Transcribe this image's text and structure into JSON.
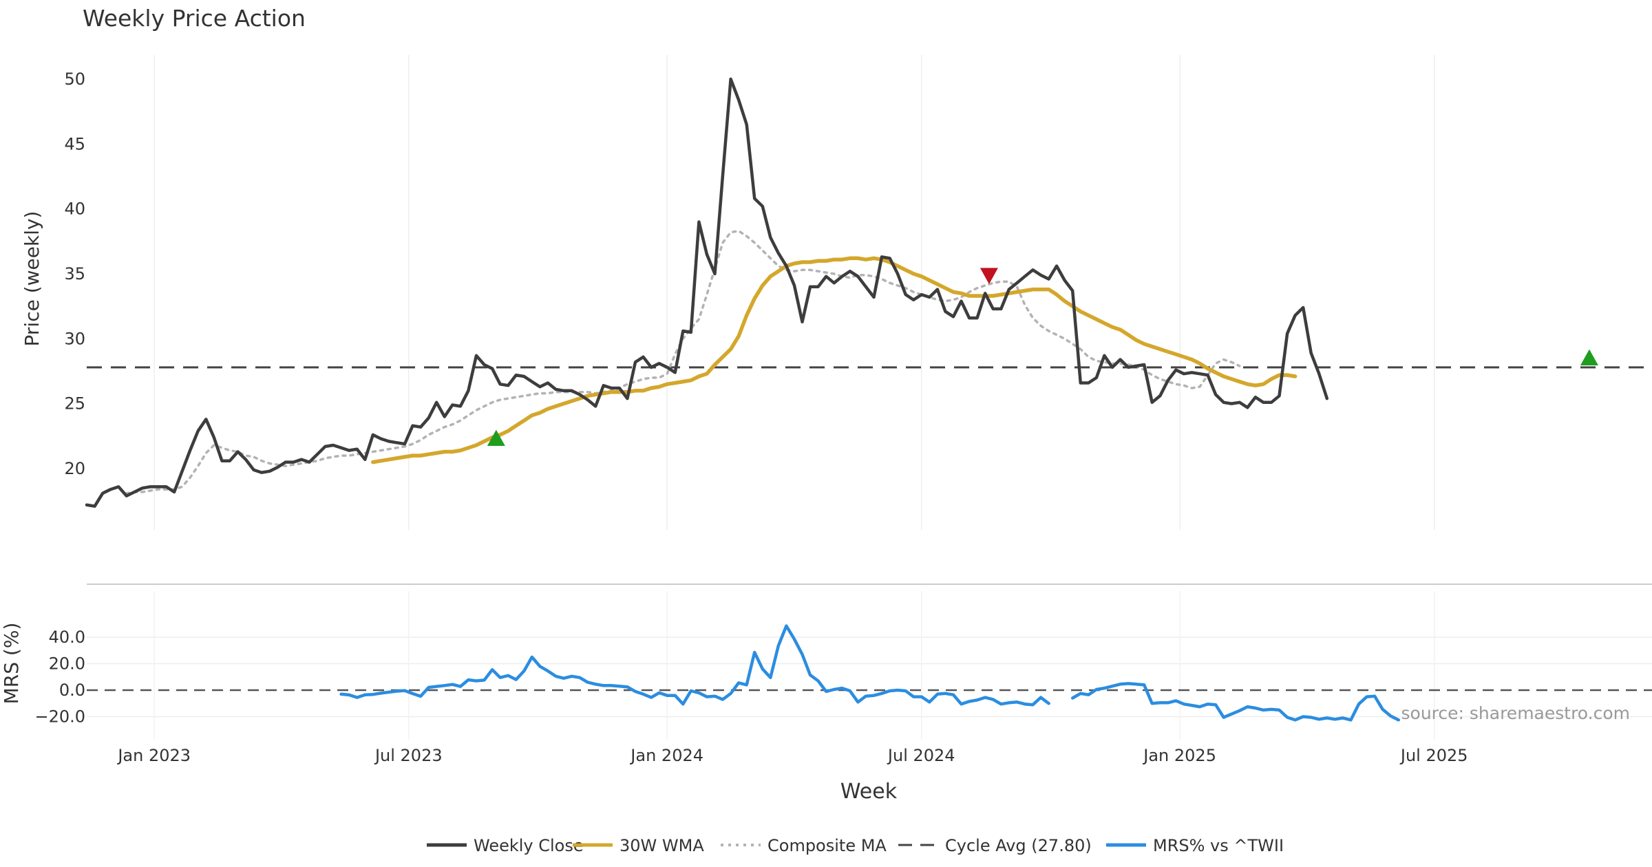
{
  "chart_data": [
    {
      "type": "line",
      "title": "Weekly Price Action",
      "ylabel": "Price (weekly)",
      "xlabel": "Week",
      "ylim": [
        14,
        52
      ],
      "yticks": [
        "20",
        "25",
        "30",
        "35",
        "40",
        "45",
        "50"
      ],
      "xlim": [
        0,
        193
      ],
      "xticks": [
        {
          "x": 8.5,
          "label": "Jan 2023"
        },
        {
          "x": 40.5,
          "label": "Jul 2023"
        },
        {
          "x": 73,
          "label": "Jan 2024"
        },
        {
          "x": 105,
          "label": "Jul 2024"
        },
        {
          "x": 137.5,
          "label": "Jan 2025"
        },
        {
          "x": 169.5,
          "label": "Jul 2025"
        }
      ],
      "grid": true,
      "series": [
        {
          "name": "Weekly Close",
          "color": "#3d3d3d",
          "x_start": 0,
          "values": [
            17.2,
            17.1,
            18.1,
            18.4,
            18.6,
            17.9,
            18.2,
            18.5,
            18.6,
            18.6,
            18.6,
            18.2,
            19.8,
            21.4,
            22.9,
            23.8,
            22.4,
            20.6,
            20.6,
            21.3,
            20.7,
            19.9,
            19.7,
            19.8,
            20.1,
            20.5,
            20.5,
            20.7,
            20.5,
            21.1,
            21.7,
            21.8,
            21.6,
            21.4,
            21.5,
            20.7,
            22.6,
            22.3,
            22.1,
            22.0,
            21.9,
            23.3,
            23.2,
            23.9,
            25.1,
            24.0,
            24.9,
            24.8,
            26.0,
            28.7,
            28.0,
            27.7,
            26.5,
            26.4,
            27.2,
            27.1,
            26.7,
            26.3,
            26.6,
            26.1,
            26.0,
            26.0,
            25.7,
            25.3,
            24.8,
            26.4,
            26.2,
            26.2,
            25.4,
            28.2,
            28.6,
            27.8,
            28.1,
            27.8,
            27.4,
            30.6,
            30.5,
            39.0,
            36.5,
            35.0,
            42.6,
            50.0,
            48.4,
            46.5,
            40.8,
            40.2,
            37.8,
            36.6,
            35.6,
            34.1,
            31.3,
            34.0,
            34.0,
            34.8,
            34.3,
            34.8,
            35.2,
            34.8,
            34.0,
            33.2,
            36.3,
            36.2,
            35.0,
            33.4,
            33.0,
            33.4,
            33.2,
            33.8,
            32.1,
            31.7,
            32.9,
            31.6,
            31.6,
            33.5,
            32.3,
            32.3,
            33.8,
            34.3,
            34.8,
            35.3,
            34.9,
            34.6,
            35.6,
            34.5,
            33.7,
            26.6,
            26.6,
            27.0,
            28.7,
            27.8,
            28.4,
            27.8,
            27.9,
            28.0,
            25.1,
            25.6,
            26.8,
            27.6,
            27.3,
            27.4,
            27.3,
            27.2,
            25.7,
            25.1,
            25.0,
            25.1,
            24.7,
            25.5,
            25.1,
            25.1,
            25.6,
            30.4,
            31.8,
            32.4,
            28.9,
            27.3,
            25.4
          ]
        },
        {
          "name": "30W WMA",
          "color": "#d4a72c",
          "x_start": 36,
          "values": [
            20.5,
            20.6,
            20.7,
            20.8,
            20.9,
            21.0,
            21.0,
            21.1,
            21.2,
            21.3,
            21.3,
            21.4,
            21.6,
            21.8,
            22.1,
            22.4,
            22.6,
            22.9,
            23.3,
            23.7,
            24.1,
            24.3,
            24.6,
            24.8,
            25.0,
            25.2,
            25.4,
            25.6,
            25.7,
            25.8,
            25.9,
            25.9,
            25.9,
            26.0,
            26.0,
            26.2,
            26.3,
            26.5,
            26.6,
            26.7,
            26.8,
            27.1,
            27.3,
            28.0,
            28.6,
            29.2,
            30.2,
            31.8,
            33.1,
            34.1,
            34.8,
            35.2,
            35.6,
            35.8,
            35.9,
            35.9,
            36.0,
            36.0,
            36.1,
            36.1,
            36.2,
            36.2,
            36.1,
            36.2,
            36.1,
            35.9,
            35.6,
            35.3,
            35.0,
            34.8,
            34.5,
            34.2,
            33.9,
            33.6,
            33.5,
            33.3,
            33.3,
            33.3,
            33.3,
            33.4,
            33.5,
            33.6,
            33.7,
            33.8,
            33.8,
            33.8,
            33.4,
            32.9,
            32.5,
            32.1,
            31.8,
            31.5,
            31.2,
            30.9,
            30.7,
            30.3,
            29.9,
            29.6,
            29.4,
            29.2,
            29.0,
            28.8,
            28.6,
            28.4,
            28.1,
            27.7,
            27.4,
            27.1,
            26.9,
            26.7,
            26.5,
            26.4,
            26.5,
            26.9,
            27.2,
            27.2,
            27.1
          ]
        },
        {
          "name": "Composite MA",
          "color": "#b3b3b3",
          "x_start": 5,
          "values": [
            18.1,
            18.2,
            18.2,
            18.3,
            18.4,
            18.4,
            18.4,
            18.6,
            19.3,
            20.2,
            21.2,
            21.8,
            21.6,
            21.4,
            21.3,
            21.0,
            20.9,
            20.6,
            20.4,
            20.3,
            20.2,
            20.3,
            20.4,
            20.5,
            20.6,
            20.8,
            20.9,
            21.0,
            21.0,
            21.1,
            21.2,
            21.3,
            21.4,
            21.5,
            21.6,
            21.7,
            21.9,
            22.2,
            22.6,
            22.9,
            23.2,
            23.4,
            23.7,
            24.1,
            24.5,
            24.8,
            25.1,
            25.3,
            25.4,
            25.5,
            25.6,
            25.7,
            25.8,
            25.8,
            25.9,
            25.9,
            25.9,
            25.9,
            25.9,
            25.8,
            25.9,
            26.0,
            26.2,
            26.5,
            26.7,
            26.9,
            27.0,
            27.0,
            27.3,
            28.8,
            30.0,
            30.8,
            31.5,
            33.4,
            35.4,
            37.4,
            38.2,
            38.3,
            37.9,
            37.4,
            36.8,
            36.2,
            35.6,
            35.3,
            35.2,
            35.3,
            35.3,
            35.2,
            35.1,
            35.0,
            34.8,
            34.7,
            34.9,
            34.9,
            34.8,
            34.6,
            34.3,
            34.1,
            33.9,
            33.6,
            33.4,
            33.2,
            33.0,
            32.9,
            33.0,
            33.2,
            33.6,
            33.9,
            34.1,
            34.3,
            34.4,
            34.4,
            34.0,
            32.6,
            31.6,
            31.0,
            30.6,
            30.3,
            30.0,
            29.6,
            29.2,
            28.6,
            28.3,
            28.2,
            28.1,
            28.1,
            28.0,
            27.9,
            27.6,
            27.2,
            26.9,
            26.7,
            26.5,
            26.4,
            26.2,
            26.3,
            27.2,
            28.1,
            28.4,
            28.2,
            27.9
          ]
        },
        {
          "name": "Cycle Avg (27.80)",
          "color": "#444444",
          "constant": 27.8
        }
      ],
      "markers": [
        {
          "type": "buy",
          "x": 51.5,
          "y": 22.3,
          "color": "#1f9d1f"
        },
        {
          "type": "sell",
          "x": 113.5,
          "y": 34.9,
          "color": "#c1121f"
        },
        {
          "type": "buy",
          "x": 189,
          "y": 28.5,
          "color": "#1f9d1f"
        }
      ]
    },
    {
      "type": "line",
      "ylabel": "MRS (%)",
      "ylim": [
        -26,
        52
      ],
      "yticks": [
        "40.0",
        "20.0",
        "0.0",
        "−20.0"
      ],
      "zero_line": true,
      "series": [
        {
          "name": "MRS% vs ^TWII",
          "color": "#2b8de0",
          "x_start": 32,
          "values": [
            -3,
            -3.6,
            -5.5,
            -3.5,
            -3.2,
            -2.3,
            -1.5,
            -0.8,
            -0.3,
            -2.6,
            -4.6,
            2.1,
            2.8,
            3.5,
            4.3,
            2.8,
            7.8,
            7.0,
            7.6,
            15.5,
            9.5,
            11,
            8.0,
            14.5,
            25,
            18,
            14.5,
            10.5,
            9,
            10.5,
            9.5,
            6,
            4.5,
            3.5,
            3.5,
            3,
            2.5,
            -1,
            -3,
            -5.5,
            -2,
            -4,
            -4,
            -10.5,
            -0.5,
            -2,
            -5,
            -4.5,
            -7,
            -2.5,
            5.5,
            4,
            28.5,
            16,
            9.5,
            33.5,
            48.5,
            38.5,
            27,
            11.5,
            7,
            -1,
            0.5,
            1.5,
            -0.5,
            -9,
            -4.5,
            -4,
            -2.5,
            -0.5,
            0,
            -0.5,
            -5,
            -5,
            -9,
            -3,
            -2.5,
            -3.5,
            -10.5,
            -8.5,
            -7.5,
            -5.5,
            -7,
            -10.5,
            -9.5,
            -9,
            -10.5,
            -11,
            -5.5,
            -10
          ]
        },
        {
          "name": "MRS% vs ^TWII",
          "color": "#2b8de0",
          "x_start": 124,
          "values": [
            -6,
            -2.5,
            -3.5,
            0.5,
            1.5,
            3,
            4.5,
            5,
            4.5,
            4,
            -10,
            -9.5,
            -9.5,
            -8,
            -10.5,
            -11.5,
            -12.5,
            -10.5,
            -11,
            -20.5,
            -18,
            -15.5,
            -12.5,
            -13.5,
            -15,
            -14.5,
            -15,
            -20.5,
            -22.5,
            -20,
            -20.5,
            -22,
            -21,
            -22,
            -21,
            -22.5,
            -10.5,
            -5,
            -4.5,
            -14.5,
            -19.5,
            -22.5
          ]
        }
      ],
      "annotation": "source: sharemaestro.com"
    }
  ],
  "legend": {
    "position": "bottom-center",
    "items": [
      {
        "label": "Weekly Close",
        "color": "#3d3d3d",
        "style": "solid"
      },
      {
        "label": "30W WMA",
        "color": "#d4a72c",
        "style": "solid"
      },
      {
        "label": "Composite MA",
        "color": "#b3b3b3",
        "style": "dotted"
      },
      {
        "label": "Cycle Avg (27.80)",
        "color": "#444444",
        "style": "dashed"
      },
      {
        "label": "MRS% vs ^TWII",
        "color": "#2b8de0",
        "style": "solid"
      }
    ]
  }
}
